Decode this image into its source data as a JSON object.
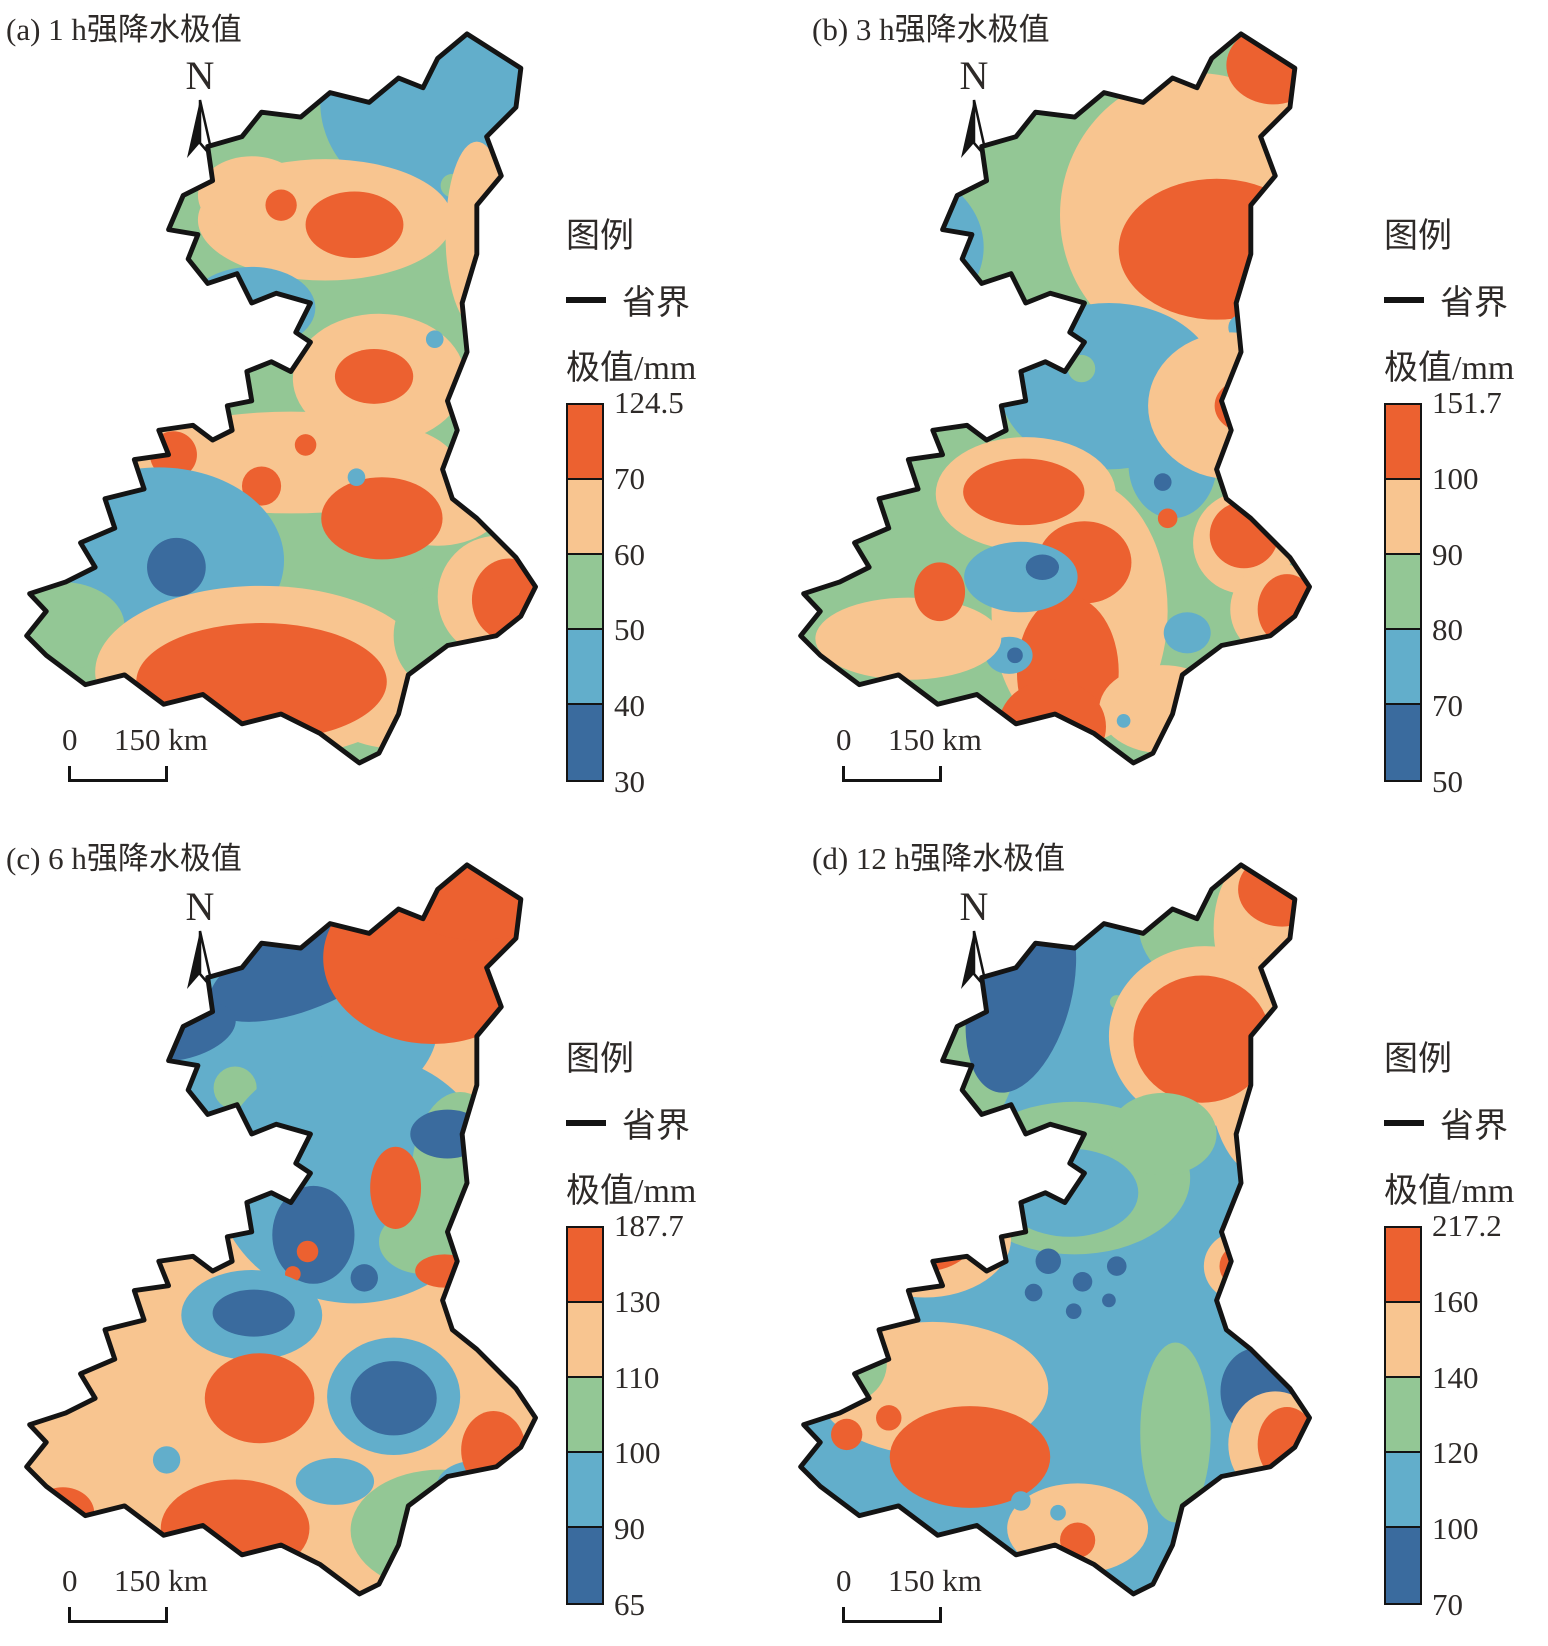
{
  "palette": {
    "orange": "#EC6130",
    "peach": "#F8C590",
    "green": "#93C795",
    "light_blue": "#62AECB",
    "dark_blue": "#3A6B9E",
    "boundary": "#141414",
    "text": "#2e2a28"
  },
  "panels": [
    {
      "label": "(a)",
      "title": "(a) 1 h强降水极值",
      "north_label": "N",
      "legend": {
        "title": "图例",
        "boundary_label": "省界",
        "unit_label": "极值/mm",
        "ticks": [
          "124.5",
          "70",
          "60",
          "50",
          "40",
          "30"
        ]
      },
      "scalebar": {
        "start": "0",
        "end": "150 km"
      }
    },
    {
      "label": "(b)",
      "title": "(b) 3 h强降水极值",
      "north_label": "N",
      "legend": {
        "title": "图例",
        "boundary_label": "省界",
        "unit_label": "极值/mm",
        "ticks": [
          "151.7",
          "100",
          "90",
          "80",
          "70",
          "50"
        ]
      },
      "scalebar": {
        "start": "0",
        "end": "150 km"
      }
    },
    {
      "label": "(c)",
      "title": "(c) 6 h强降水极值",
      "north_label": "N",
      "legend": {
        "title": "图例",
        "boundary_label": "省界",
        "unit_label": "极值/mm",
        "ticks": [
          "187.7",
          "130",
          "110",
          "100",
          "90",
          "65"
        ]
      },
      "scalebar": {
        "start": "0",
        "end": "150 km"
      }
    },
    {
      "label": "(d)",
      "title": "(d) 12 h强降水极值",
      "north_label": "N",
      "legend": {
        "title": "图例",
        "boundary_label": "省界",
        "unit_label": "极值/mm",
        "ticks": [
          "217.2",
          "160",
          "140",
          "120",
          "100",
          "70"
        ]
      },
      "scalebar": {
        "start": "0",
        "end": "150 km"
      }
    }
  ]
}
